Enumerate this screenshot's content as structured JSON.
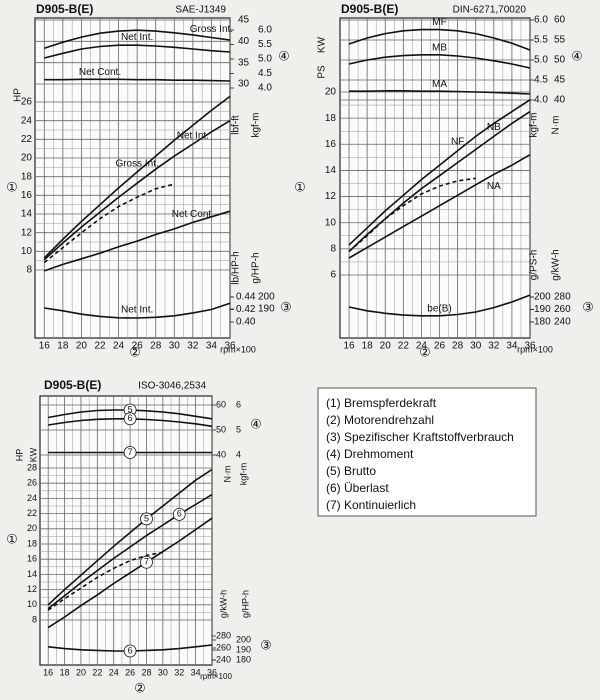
{
  "chart_data": [
    {
      "type": "line",
      "title": "D905-B(E)",
      "subtitle": "SAE-J1349",
      "xlabel": "rpm×100",
      "x": [
        16,
        18,
        20,
        22,
        24,
        26,
        28,
        30,
        32,
        34,
        36
      ],
      "xlim": [
        15,
        36
      ],
      "xticks": [
        16,
        18,
        20,
        22,
        24,
        26,
        28,
        30,
        32,
        34,
        36
      ],
      "markers": [
        "①",
        "②",
        "③",
        "④"
      ],
      "axes": [
        {
          "label": "HP",
          "lim": [
            8,
            26
          ],
          "ticks": [
            8,
            10,
            12,
            14,
            16,
            18,
            20,
            22,
            24,
            26
          ]
        },
        {
          "label": "lbf-ft",
          "lim": [
            30,
            45
          ],
          "ticks": [
            30,
            35,
            40,
            45
          ]
        },
        {
          "label": "kgf-m",
          "lim": [
            4,
            6
          ],
          "ticks": [
            {
              "value": 4,
              "label": "4.0"
            },
            {
              "value": 4.5,
              "label": "4.5"
            },
            {
              "value": 5,
              "label": "5.0"
            },
            {
              "value": 5.5,
              "label": "5.5"
            },
            {
              "value": 6,
              "label": "6.0"
            }
          ]
        },
        {
          "label": "lb/HP-h",
          "lim": [
            0.4,
            0.44
          ],
          "ticks": [
            {
              "value": 0.4,
              "label": "0.40"
            },
            0.42,
            0.44
          ]
        },
        {
          "label": "g/HP-h",
          "lim": [
            190,
            200
          ],
          "ticks": [
            190,
            200
          ]
        }
      ],
      "series": [
        {
          "name": "Gross Int.",
          "axis": 0,
          "color": "#111",
          "values": [
            9.3,
            11.3,
            13.2,
            15,
            16.8,
            18.5,
            20.2,
            21.9,
            23.5,
            25.1,
            26.6
          ]
        },
        {
          "name": "Net Int.",
          "axis": 0,
          "color": "#111",
          "values": [
            9.1,
            10.9,
            12.6,
            14.2,
            15.8,
            17.3,
            18.8,
            20.2,
            21.5,
            22.8,
            24
          ]
        },
        {
          "name": "Net Cont.",
          "axis": 0,
          "color": "#111",
          "values": [
            7.9,
            8.6,
            9.2,
            9.8,
            10.5,
            11.1,
            11.8,
            12.4,
            13.1,
            13.7,
            14.3
          ]
        },
        {
          "axis": 0,
          "color": "#111",
          "dashed": true,
          "values": [
            8.8,
            10.4,
            12,
            13.5,
            14.8,
            15.8,
            16.7,
            17.2,
            null,
            null,
            null
          ]
        },
        {
          "name": "Gross Int.",
          "axis": 1,
          "color": "#111",
          "values": [
            38.4,
            39.8,
            41,
            41.9,
            42.4,
            42.6,
            42.4,
            42,
            41.5,
            40.9,
            40.3
          ]
        },
        {
          "name": "Net Int.",
          "axis": 1,
          "color": "#111",
          "values": [
            36.1,
            37.2,
            38.2,
            38.8,
            39.1,
            39.1,
            38.9,
            38.6,
            38.2,
            37.8,
            37.5
          ]
        },
        {
          "name": "Net Cont.",
          "axis": 1,
          "color": "#111",
          "values": [
            31,
            31,
            31.1,
            31.1,
            31.1,
            31,
            31,
            30.9,
            30.9,
            30.8,
            30.7
          ]
        },
        {
          "name": "Net Int.",
          "axis": 3,
          "color": "#111",
          "values": [
            0.4224,
            0.418,
            0.4125,
            0.409,
            0.4068,
            0.4064,
            0.4075,
            0.41,
            0.4145,
            0.42,
            0.43
          ]
        }
      ]
    },
    {
      "type": "line",
      "title": "D905-B(E)",
      "subtitle": "DIN-6271,70020",
      "xlabel": "rpm×100",
      "x": [
        16,
        18,
        20,
        22,
        24,
        26,
        28,
        30,
        32,
        34,
        36
      ],
      "xlim": [
        15,
        36
      ],
      "xticks": [
        16,
        18,
        20,
        22,
        24,
        26,
        28,
        30,
        32,
        34,
        36
      ],
      "markers": [
        "①",
        "②",
        "③",
        "④"
      ],
      "axes": [
        {
          "label": "KW",
          "lim": [
            6,
            20
          ],
          "ticks": [
            6,
            8,
            10,
            12,
            14,
            16,
            18,
            20
          ]
        },
        {
          "label": "PS"
        },
        {
          "label": "kgf-m",
          "lim": [
            4,
            6
          ],
          "ticks": [
            {
              "value": 4,
              "label": "4.0"
            },
            {
              "value": 4.5,
              "label": "4.5"
            },
            {
              "value": 5,
              "label": "5.0"
            },
            {
              "value": 5.5,
              "label": "5.5"
            },
            {
              "value": 6,
              "label": "6.0"
            }
          ]
        },
        {
          "label": "N·m",
          "lim": [
            40,
            60
          ],
          "ticks": [
            40,
            45,
            50,
            55,
            60
          ]
        },
        {
          "label": "g/PS-h",
          "lim": [
            180,
            200
          ],
          "ticks": [
            180,
            190,
            200
          ]
        },
        {
          "label": "g/kW-h",
          "lim": [
            240,
            280
          ],
          "ticks": [
            240,
            260,
            280
          ]
        }
      ],
      "series": [
        {
          "name": "MF",
          "axis": 2,
          "color": "#111",
          "values": [
            5.4,
            5.55,
            5.66,
            5.73,
            5.76,
            5.76,
            5.73,
            5.66,
            5.55,
            5.42,
            5.25
          ]
        },
        {
          "name": "MB",
          "axis": 2,
          "color": "#111",
          "values": [
            4.9,
            5,
            5.07,
            5.11,
            5.13,
            5.13,
            5.1,
            5.05,
            4.98,
            4.9,
            4.8
          ]
        },
        {
          "name": "MA",
          "axis": 2,
          "color": "#111",
          "values": [
            4.22,
            4.22,
            4.23,
            4.23,
            4.22,
            4.22,
            4.21,
            4.2,
            4.19,
            4.17,
            4.15
          ]
        },
        {
          "name": "NF",
          "axis": 0,
          "color": "#111",
          "values": [
            8.3,
            9.6,
            10.9,
            12.1,
            13.3,
            14.4,
            15.5,
            16.6,
            17.6,
            18.5,
            19.4
          ]
        },
        {
          "name": "NB",
          "axis": 0,
          "color": "#111",
          "values": [
            7.8,
            9.1,
            10.3,
            11.5,
            12.6,
            13.6,
            14.6,
            15.6,
            16.6,
            17.6,
            18.5
          ]
        },
        {
          "name": "NA",
          "axis": 0,
          "color": "#111",
          "values": [
            7.3,
            8.1,
            8.9,
            9.7,
            10.5,
            11.3,
            12.1,
            12.9,
            13.7,
            14.4,
            15.2
          ]
        },
        {
          "axis": 0,
          "color": "#111",
          "dashed": true,
          "values": [
            7.8,
            9,
            10.3,
            11.3,
            12.2,
            12.8,
            13.2,
            13.4,
            null,
            null,
            null
          ]
        },
        {
          "name": "be(B)",
          "axis": 5,
          "color": "#111",
          "values": [
            264,
            258,
            254,
            251,
            250,
            250,
            252,
            256,
            263,
            272,
            283
          ]
        }
      ]
    },
    {
      "type": "line",
      "title": "D905-B(E)",
      "subtitle": "ISO-3046,2534",
      "xlabel": "rpm×100",
      "circled_names": true,
      "x": [
        16,
        18,
        20,
        22,
        24,
        26,
        28,
        30,
        32,
        34,
        36
      ],
      "xlim": [
        15,
        36
      ],
      "xticks": [
        16,
        18,
        20,
        22,
        24,
        26,
        28,
        30,
        32,
        34,
        36
      ],
      "markers": [
        "①",
        "②",
        "③",
        "④"
      ],
      "axes": [
        {
          "label": "HP",
          "lim": [
            8,
            28
          ],
          "ticks": [
            8,
            10,
            12,
            14,
            16,
            18,
            20,
            22,
            24,
            26,
            28
          ]
        },
        {
          "label": "KW"
        },
        {
          "label": "N·m",
          "lim": [
            40,
            60
          ],
          "ticks": [
            40,
            50,
            60
          ]
        },
        {
          "label": "kgf-m",
          "lim": [
            4,
            6
          ],
          "ticks": [
            4,
            5,
            6
          ]
        },
        {
          "label": "g/kW-h",
          "lim": [
            240,
            280
          ],
          "ticks": [
            240,
            260,
            280
          ]
        },
        {
          "label": "g/HP-h",
          "lim": [
            180,
            200
          ],
          "ticks": [
            180,
            190,
            200
          ]
        }
      ],
      "series": [
        {
          "name": "5",
          "axis": 3,
          "color": "#111",
          "values": [
            5.5,
            5.62,
            5.72,
            5.78,
            5.8,
            5.8,
            5.77,
            5.72,
            5.65,
            5.55,
            5.45
          ]
        },
        {
          "name": "6",
          "axis": 3,
          "color": "#111",
          "values": [
            5.2,
            5.3,
            5.38,
            5.43,
            5.45,
            5.45,
            5.42,
            5.38,
            5.32,
            5.25,
            5.15
          ]
        },
        {
          "name": "7",
          "axis": 3,
          "color": "#111",
          "values": [
            4.1,
            4.1,
            4.1,
            4.1,
            4.1,
            4.1,
            4.1,
            4.1,
            4.1,
            4.1,
            4.1
          ]
        },
        {
          "name": "5",
          "axis": 0,
          "color": "#111",
          "values": [
            10,
            12,
            13.9,
            15.8,
            17.7,
            19.5,
            21.3,
            23,
            24.7,
            26.4,
            27.8
          ]
        },
        {
          "name": "6",
          "axis": 0,
          "color": "#111",
          "values": [
            9.5,
            11.2,
            12.9,
            14.5,
            16.1,
            17.6,
            19.1,
            20.5,
            21.9,
            23.2,
            24.5
          ]
        },
        {
          "name": "7",
          "axis": 0,
          "color": "#111",
          "values": [
            7,
            8.4,
            9.9,
            11.3,
            12.8,
            14.2,
            15.6,
            17,
            18.4,
            19.9,
            21.4
          ]
        },
        {
          "axis": 0,
          "color": "#111",
          "dashed": true,
          "values": [
            9.3,
            10.8,
            12.2,
            13.6,
            14.8,
            15.8,
            16.5,
            16.9,
            null,
            null,
            null
          ]
        },
        {
          "name": "6",
          "axis": 4,
          "color": "#111",
          "values": [
            262,
            259,
            257,
            256,
            255,
            255,
            256,
            257,
            259,
            262,
            265
          ]
        }
      ]
    }
  ],
  "legend_list": [
    "(1) Bremspferdekraft",
    "(2) Motorendrehzahl",
    "(3) Spezifischer Kraftstoffverbrauch",
    "(4) Drehmoment",
    "(5) Brutto",
    "(6) Überlast",
    "(7) Kontinuierlich"
  ]
}
